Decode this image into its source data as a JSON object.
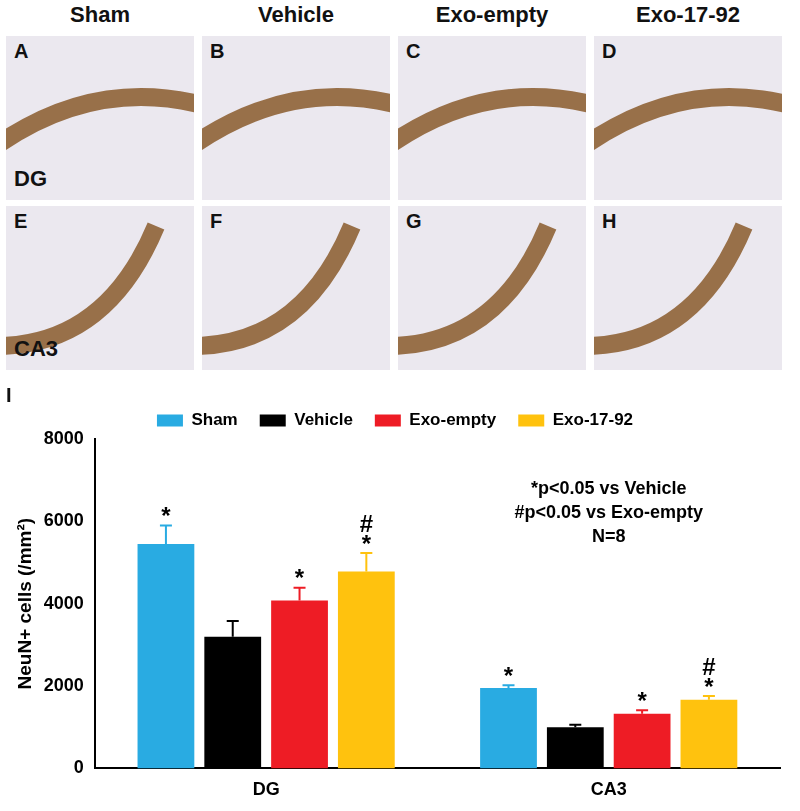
{
  "panels": {
    "columns": [
      "Sham",
      "Vehicle",
      "Exo-empty",
      "Exo-17-92"
    ],
    "rows": [
      {
        "region": "DG",
        "letters": [
          "A",
          "B",
          "C",
          "D"
        ]
      },
      {
        "region": "CA3",
        "letters": [
          "E",
          "F",
          "G",
          "H"
        ]
      }
    ]
  },
  "chart_data": {
    "type": "bar",
    "panel_label": "I",
    "categories": [
      "DG",
      "CA3"
    ],
    "series": [
      {
        "name": "Sham",
        "color": "#29abe2",
        "values": [
          5450,
          1950
        ],
        "errors": [
          450,
          70
        ],
        "significance": [
          [
            "*"
          ],
          [
            "*"
          ]
        ]
      },
      {
        "name": "Vehicle",
        "color": "#000000",
        "values": [
          3200,
          1000
        ],
        "errors": [
          380,
          60
        ],
        "significance": [
          [],
          []
        ]
      },
      {
        "name": "Exo-empty",
        "color": "#ee1c25",
        "values": [
          4080,
          1330
        ],
        "errors": [
          310,
          80
        ],
        "significance": [
          [
            "*"
          ],
          [
            "*"
          ]
        ]
      },
      {
        "name": "Exo-17-92",
        "color": "#ffc20e",
        "values": [
          4780,
          1670
        ],
        "errors": [
          450,
          90
        ],
        "significance": [
          [
            "#",
            "*"
          ],
          [
            "#",
            "*"
          ]
        ]
      }
    ],
    "ylabel": "NeuN+ cells (/mm²)",
    "ylim": [
      0,
      8000
    ],
    "yticks": [
      0,
      2000,
      4000,
      6000,
      8000
    ],
    "grid": false,
    "legend": "top",
    "annotations": [
      "*p<0.05 vs Vehicle",
      "#p<0.05 vs Exo-empty",
      "N=8"
    ]
  }
}
